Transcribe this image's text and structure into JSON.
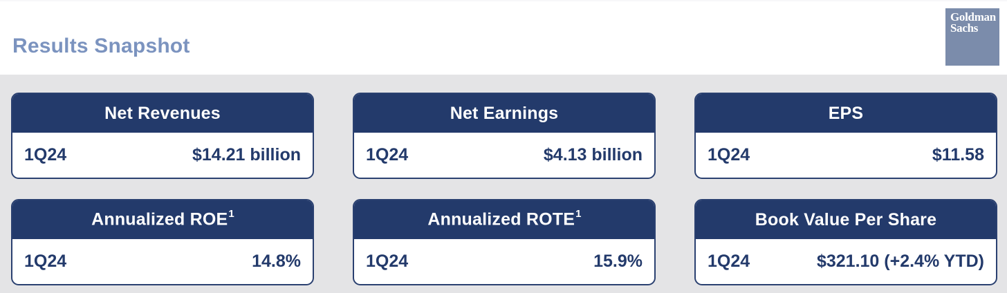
{
  "page": {
    "title": "Results Snapshot"
  },
  "colors": {
    "accent_navy": "#233a6b",
    "title_blue": "#7b93bf",
    "background_gray": "#e4e4e6",
    "logo_blue": "#7b8cab"
  },
  "logo": {
    "line1": "Goldman",
    "line2": "Sachs"
  },
  "cards": [
    {
      "title": "Net Revenues",
      "superscript": "",
      "period": "1Q24",
      "value": "$14.21 billion"
    },
    {
      "title": "Net Earnings",
      "superscript": "",
      "period": "1Q24",
      "value": "$4.13 billion"
    },
    {
      "title": "EPS",
      "superscript": "",
      "period": "1Q24",
      "value": "$11.58"
    },
    {
      "title": "Annualized ROE",
      "superscript": "1",
      "period": "1Q24",
      "value": "14.8%"
    },
    {
      "title": "Annualized ROTE",
      "superscript": "1",
      "period": "1Q24",
      "value": "15.9%"
    },
    {
      "title": "Book Value Per Share",
      "superscript": "",
      "period": "1Q24",
      "value": "$321.10 (+2.4% YTD)"
    }
  ]
}
